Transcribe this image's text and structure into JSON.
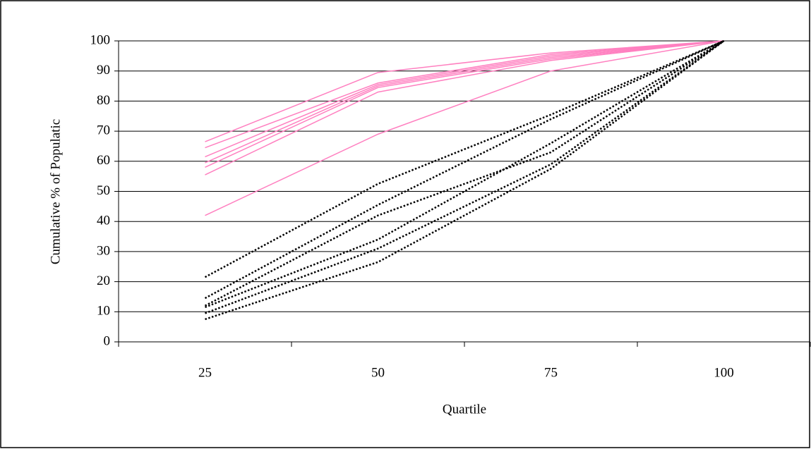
{
  "chart_data": {
    "type": "line",
    "x_label": "Quartile",
    "y_label": "Cumulative % of Populatic",
    "categories": [
      "25",
      "50",
      "75",
      "100"
    ],
    "ylim": [
      0,
      100
    ],
    "yticks": [
      0,
      10,
      20,
      30,
      40,
      50,
      60,
      70,
      80,
      90,
      100
    ],
    "grid": true,
    "series": [
      {
        "color": "#ff80c0",
        "style": "solid",
        "values": [
          66.5,
          89.5,
          96,
          100
        ]
      },
      {
        "color": "#ff80c0",
        "style": "solid",
        "values": [
          64.5,
          86,
          95.5,
          100
        ]
      },
      {
        "color": "#ff80c0",
        "style": "solid",
        "values": [
          61.5,
          85.5,
          95,
          100
        ]
      },
      {
        "color": "#ff80c0",
        "style": "solid",
        "values": [
          59.5,
          85,
          94.5,
          100
        ]
      },
      {
        "color": "#ff80c0",
        "style": "solid",
        "values": [
          58,
          84.5,
          94,
          100
        ]
      },
      {
        "color": "#ff80c0",
        "style": "solid",
        "values": [
          55.5,
          83,
          93.5,
          100
        ]
      },
      {
        "color": "#ff80c0",
        "style": "solid",
        "values": [
          42,
          69,
          90,
          100
        ]
      },
      {
        "color": "#000000",
        "style": "dotted",
        "values": [
          21.5,
          52.5,
          75.5,
          100
        ]
      },
      {
        "color": "#000000",
        "style": "dotted",
        "values": [
          14.5,
          45.5,
          74,
          100
        ]
      },
      {
        "color": "#000000",
        "style": "dotted",
        "values": [
          12,
          42,
          63,
          100
        ]
      },
      {
        "color": "#000000",
        "style": "dotted",
        "values": [
          11.5,
          34,
          66,
          100
        ]
      },
      {
        "color": "#000000",
        "style": "dotted",
        "values": [
          9.5,
          31,
          59,
          100
        ]
      },
      {
        "color": "#000000",
        "style": "dotted",
        "values": [
          7.5,
          26.5,
          57.5,
          100
        ]
      }
    ]
  }
}
